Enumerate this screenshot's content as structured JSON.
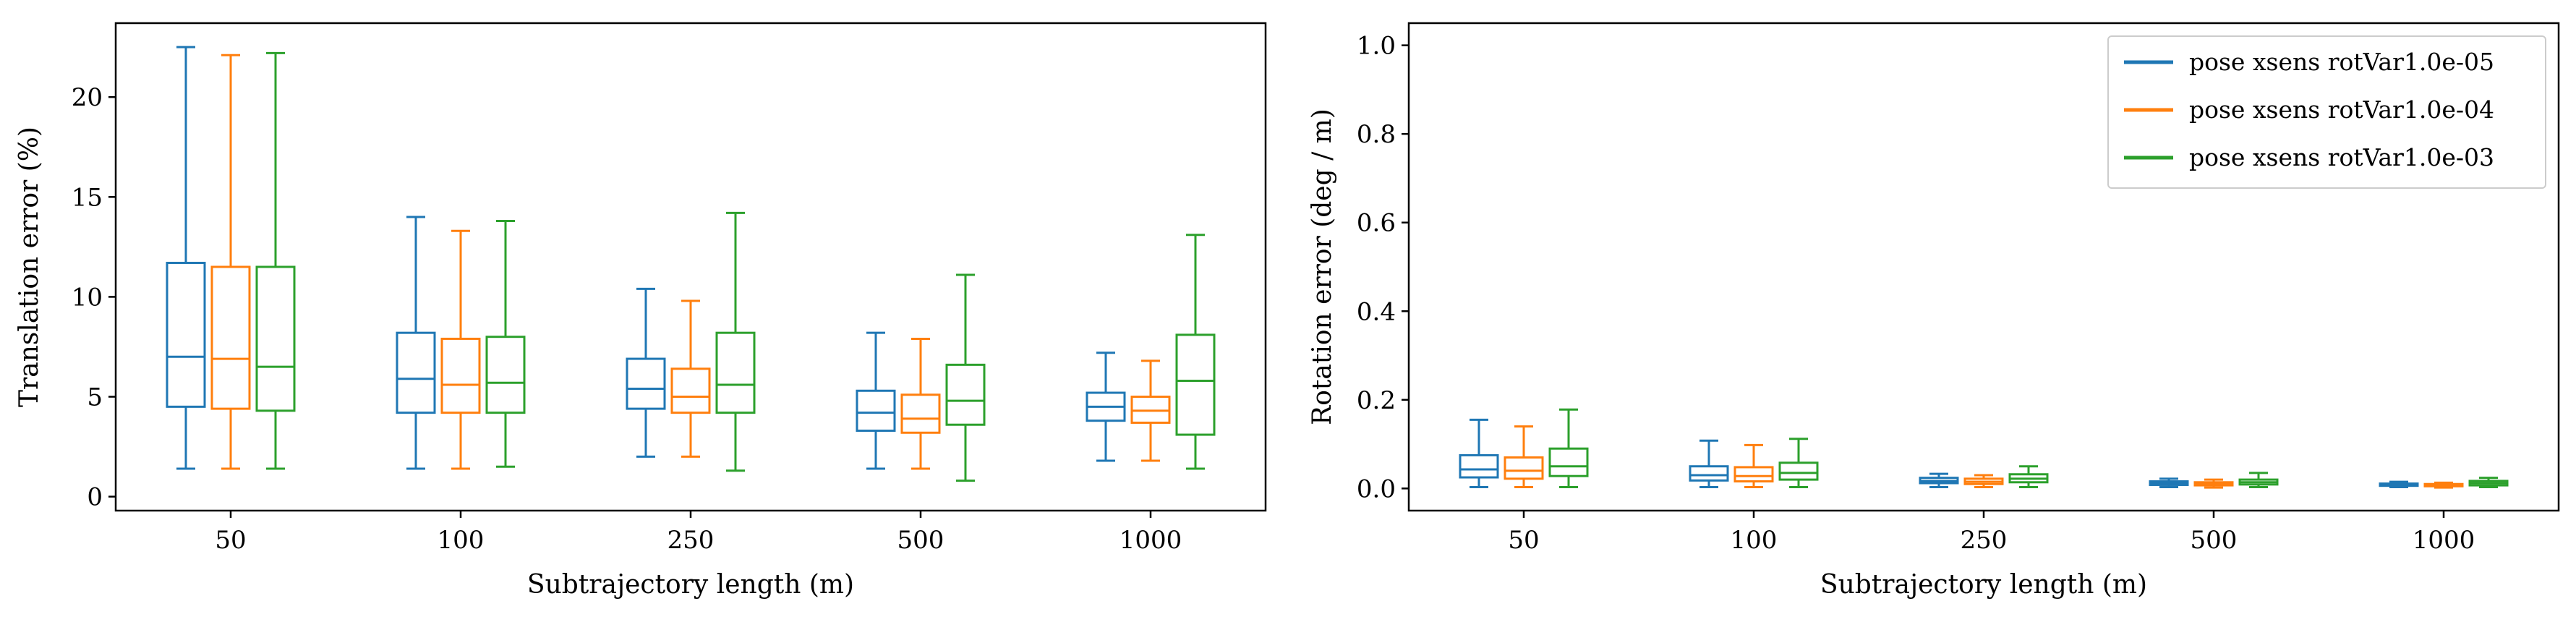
{
  "chart_data": [
    {
      "type": "box",
      "xlabel": "Subtrajectory length (m)",
      "ylabel": "Translation error (%)",
      "categories": [
        "50",
        "100",
        "250",
        "500",
        "1000"
      ],
      "ylim": [
        -0.7,
        23.7
      ],
      "yticks": [
        0,
        5,
        10,
        15,
        20
      ],
      "grid": false,
      "series": [
        {
          "name": "pose xsens rotVar1.0e-05",
          "color": "#1f77b4",
          "boxes": [
            {
              "whislo": 1.4,
              "q1": 4.5,
              "med": 7.0,
              "q3": 11.7,
              "whishi": 22.5
            },
            {
              "whislo": 1.4,
              "q1": 4.2,
              "med": 5.9,
              "q3": 8.2,
              "whishi": 14.0
            },
            {
              "whislo": 2.0,
              "q1": 4.4,
              "med": 5.4,
              "q3": 6.9,
              "whishi": 10.4
            },
            {
              "whislo": 1.4,
              "q1": 3.3,
              "med": 4.2,
              "q3": 5.3,
              "whishi": 8.2
            },
            {
              "whislo": 1.8,
              "q1": 3.8,
              "med": 4.5,
              "q3": 5.2,
              "whishi": 7.2
            }
          ]
        },
        {
          "name": "pose xsens rotVar1.0e-04",
          "color": "#ff7f0e",
          "boxes": [
            {
              "whislo": 1.4,
              "q1": 4.4,
              "med": 6.9,
              "q3": 11.5,
              "whishi": 22.1
            },
            {
              "whislo": 1.4,
              "q1": 4.2,
              "med": 5.6,
              "q3": 7.9,
              "whishi": 13.3
            },
            {
              "whislo": 2.0,
              "q1": 4.2,
              "med": 5.0,
              "q3": 6.4,
              "whishi": 9.8
            },
            {
              "whislo": 1.4,
              "q1": 3.2,
              "med": 3.9,
              "q3": 5.1,
              "whishi": 7.9
            },
            {
              "whislo": 1.8,
              "q1": 3.7,
              "med": 4.3,
              "q3": 5.0,
              "whishi": 6.8
            }
          ]
        },
        {
          "name": "pose xsens rotVar1.0e-03",
          "color": "#2ca02c",
          "boxes": [
            {
              "whislo": 1.4,
              "q1": 4.3,
              "med": 6.5,
              "q3": 11.5,
              "whishi": 22.2
            },
            {
              "whislo": 1.5,
              "q1": 4.2,
              "med": 5.7,
              "q3": 8.0,
              "whishi": 13.8
            },
            {
              "whislo": 1.3,
              "q1": 4.2,
              "med": 5.6,
              "q3": 8.2,
              "whishi": 14.2
            },
            {
              "whislo": 0.8,
              "q1": 3.6,
              "med": 4.8,
              "q3": 6.6,
              "whishi": 11.1
            },
            {
              "whislo": 1.4,
              "q1": 3.1,
              "med": 5.8,
              "q3": 8.1,
              "whishi": 13.1
            }
          ]
        }
      ]
    },
    {
      "type": "box",
      "xlabel": "Subtrajectory length (m)",
      "ylabel": "Rotation error (deg / m)",
      "categories": [
        "50",
        "100",
        "250",
        "500",
        "1000"
      ],
      "ylim": [
        -0.05,
        1.05
      ],
      "yticks": [
        0.0,
        0.2,
        0.4,
        0.6,
        0.8,
        1.0
      ],
      "grid": false,
      "legend_position": "top-right",
      "series": [
        {
          "name": "pose xsens rotVar1.0e-05",
          "color": "#1f77b4",
          "boxes": [
            {
              "whislo": 0.003,
              "q1": 0.025,
              "med": 0.043,
              "q3": 0.075,
              "whishi": 0.155
            },
            {
              "whislo": 0.003,
              "q1": 0.018,
              "med": 0.03,
              "q3": 0.05,
              "whishi": 0.108
            },
            {
              "whislo": 0.003,
              "q1": 0.012,
              "med": 0.017,
              "q3": 0.024,
              "whishi": 0.033
            },
            {
              "whislo": 0.003,
              "q1": 0.008,
              "med": 0.012,
              "q3": 0.016,
              "whishi": 0.022
            },
            {
              "whislo": 0.003,
              "q1": 0.006,
              "med": 0.009,
              "q3": 0.011,
              "whishi": 0.015
            }
          ]
        },
        {
          "name": "pose xsens rotVar1.0e-04",
          "color": "#ff7f0e",
          "boxes": [
            {
              "whislo": 0.003,
              "q1": 0.022,
              "med": 0.04,
              "q3": 0.07,
              "whishi": 0.14
            },
            {
              "whislo": 0.003,
              "q1": 0.016,
              "med": 0.028,
              "q3": 0.048,
              "whishi": 0.098
            },
            {
              "whislo": 0.003,
              "q1": 0.01,
              "med": 0.015,
              "q3": 0.022,
              "whishi": 0.03
            },
            {
              "whislo": 0.002,
              "q1": 0.007,
              "med": 0.01,
              "q3": 0.014,
              "whishi": 0.02
            },
            {
              "whislo": 0.002,
              "q1": 0.005,
              "med": 0.008,
              "q3": 0.01,
              "whishi": 0.013
            }
          ]
        },
        {
          "name": "pose xsens rotVar1.0e-03",
          "color": "#2ca02c",
          "boxes": [
            {
              "whislo": 0.003,
              "q1": 0.028,
              "med": 0.05,
              "q3": 0.09,
              "whishi": 0.178
            },
            {
              "whislo": 0.003,
              "q1": 0.02,
              "med": 0.035,
              "q3": 0.058,
              "whishi": 0.112
            },
            {
              "whislo": 0.003,
              "q1": 0.014,
              "med": 0.022,
              "q3": 0.032,
              "whishi": 0.05
            },
            {
              "whislo": 0.003,
              "q1": 0.009,
              "med": 0.014,
              "q3": 0.02,
              "whishi": 0.035
            },
            {
              "whislo": 0.003,
              "q1": 0.007,
              "med": 0.012,
              "q3": 0.017,
              "whishi": 0.024
            }
          ]
        }
      ]
    }
  ]
}
